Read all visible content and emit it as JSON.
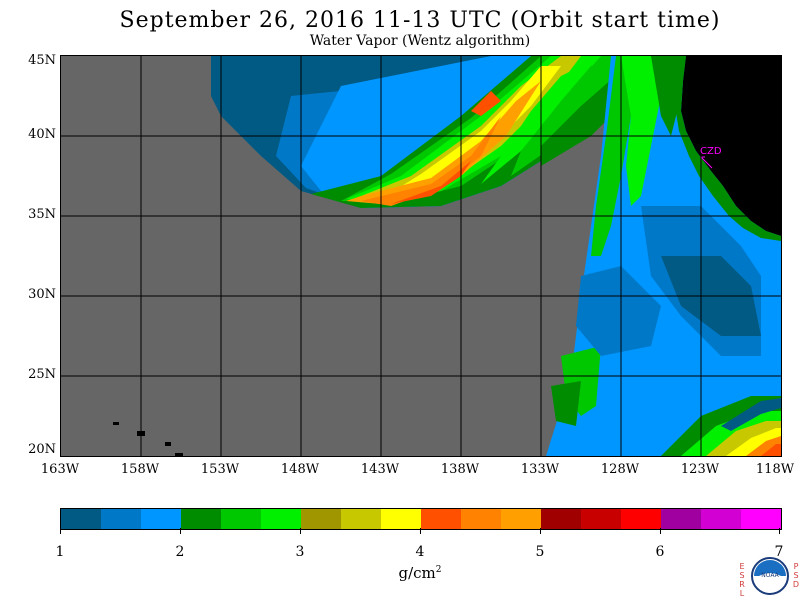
{
  "header": {
    "title": "September 26, 2016  11-13 UTC  (Orbit start time)",
    "subtitle": "Water Vapor (Wentz algorithm)"
  },
  "map": {
    "latitude_labels": [
      "45N",
      "40N",
      "35N",
      "30N",
      "25N",
      "20N"
    ],
    "longitude_labels": [
      "163W",
      "158W",
      "153W",
      "148W",
      "143W",
      "138W",
      "133W",
      "128W",
      "123W",
      "118W"
    ],
    "station_label": "CZD",
    "colors": {
      "no_data": "#666666",
      "land": "#000000",
      "station": "#ff00ff"
    }
  },
  "colorbar": {
    "colors": [
      "#005a84",
      "#0078c8",
      "#0096ff",
      "#008c00",
      "#00c800",
      "#00f000",
      "#a09600",
      "#c8c800",
      "#ffff00",
      "#ff5000",
      "#ff8200",
      "#ffa000",
      "#a00000",
      "#c80000",
      "#ff0000",
      "#a000a0",
      "#d200d2",
      "#ff00ff"
    ],
    "tick_labels": [
      "1",
      "2",
      "3",
      "4",
      "5",
      "6",
      "7"
    ],
    "units": "g/cm",
    "units_exponent": "2"
  },
  "logo": {
    "left_letters": [
      "E",
      "S",
      "R",
      "L"
    ],
    "right_letters": [
      "P",
      "S",
      "D"
    ],
    "center_text": "NOAA"
  }
}
